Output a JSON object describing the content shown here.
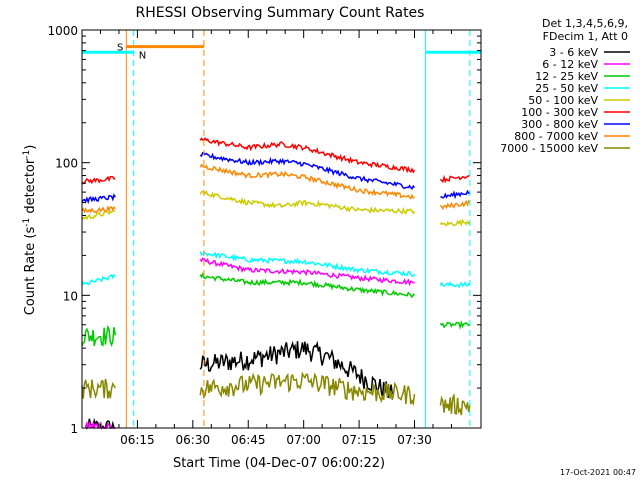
{
  "chart_data": {
    "type": "line",
    "title": "RHESSI Observing Summary Count Rates",
    "xlabel": "Start Time (04-Dec-07 06:00:22)",
    "ylabel_main": "Count Rate (s",
    "ylabel_sup1": "-1",
    "ylabel_mid": " detector",
    "ylabel_sup2": "-1",
    "ylabel_end": ")",
    "yscale": "log",
    "ylim": [
      1,
      1000
    ],
    "xlim_min": [
      0,
      108
    ],
    "x_ticks": [
      {
        "min": 15,
        "label": "06:15"
      },
      {
        "min": 30,
        "label": "06:30"
      },
      {
        "min": 45,
        "label": "06:45"
      },
      {
        "min": 60,
        "label": "07:00"
      },
      {
        "min": 75,
        "label": "07:15"
      },
      {
        "min": 90,
        "label": "07:30"
      }
    ],
    "y_ticks": [
      {
        "value": 1,
        "label": "1"
      },
      {
        "value": 10,
        "label": "10"
      },
      {
        "value": 100,
        "label": "100"
      },
      {
        "value": 1000,
        "label": "1000"
      }
    ],
    "legend": {
      "header1": "Det 1,3,4,5,6,9,",
      "header2": "FDecim 1, Att 0",
      "position": "right"
    },
    "series": [
      {
        "name": "3 - 6 keV",
        "color": "#000000",
        "segments": [
          [
            [
              1,
              1
            ],
            [
              9,
              1
            ]
          ],
          [
            [
              32,
              3
            ],
            [
              45,
              3.3
            ],
            [
              54,
              3.7
            ],
            [
              60,
              4
            ],
            [
              66,
              3.5
            ],
            [
              74,
              2.6
            ],
            [
              84,
              1.8
            ]
          ]
        ]
      },
      {
        "name": "6 - 12 keV",
        "color": "#ff00ff",
        "segments": [
          [
            [
              1,
              1
            ],
            [
              9,
              1
            ]
          ],
          [
            [
              32,
              18.5
            ],
            [
              45,
              15.5
            ],
            [
              60,
              15
            ],
            [
              75,
              13.5
            ],
            [
              90,
              12.5
            ]
          ]
        ]
      },
      {
        "name": "12 - 25 keV",
        "color": "#00cc00",
        "segments": [
          [
            [
              0,
              5
            ],
            [
              9,
              5
            ]
          ],
          [
            [
              32,
              14
            ],
            [
              45,
              12.5
            ],
            [
              60,
              12.5
            ],
            [
              75,
              11
            ],
            [
              90,
              10
            ]
          ],
          [
            [
              97,
              6
            ],
            [
              105,
              6
            ]
          ]
        ]
      },
      {
        "name": "25 - 50 keV",
        "color": "#00ffff",
        "segments": [
          [
            [
              0,
              12
            ],
            [
              9,
              14
            ]
          ],
          [
            [
              32,
              21
            ],
            [
              45,
              18.5
            ],
            [
              60,
              18
            ],
            [
              75,
              15.5
            ],
            [
              90,
              14.5
            ]
          ],
          [
            [
              97,
              12
            ],
            [
              105,
              12
            ]
          ]
        ]
      },
      {
        "name": "50 - 100 keV",
        "color": "#cccc00",
        "segments": [
          [
            [
              0,
              38
            ],
            [
              9,
              43
            ]
          ],
          [
            [
              32,
              60
            ],
            [
              45,
              50
            ],
            [
              54,
              47
            ],
            [
              60,
              50
            ],
            [
              66,
              48
            ],
            [
              75,
              44
            ],
            [
              90,
              43
            ]
          ],
          [
            [
              97,
              34
            ],
            [
              105,
              36
            ]
          ]
        ]
      },
      {
        "name": "100 - 300 keV",
        "color": "#ff0000",
        "segments": [
          [
            [
              0,
              72
            ],
            [
              9,
              76
            ]
          ],
          [
            [
              32,
              150
            ],
            [
              45,
              130
            ],
            [
              54,
              138
            ],
            [
              60,
              130
            ],
            [
              75,
              100
            ],
            [
              90,
              88
            ]
          ],
          [
            [
              97,
              74
            ],
            [
              105,
              80
            ]
          ]
        ]
      },
      {
        "name": "300 - 800 keV",
        "color": "#0000ff",
        "segments": [
          [
            [
              0,
              52
            ],
            [
              9,
              55
            ]
          ],
          [
            [
              32,
              115
            ],
            [
              45,
              100
            ],
            [
              54,
              103
            ],
            [
              60,
              98
            ],
            [
              75,
              76
            ],
            [
              90,
              65
            ]
          ],
          [
            [
              97,
              55
            ],
            [
              105,
              60
            ]
          ]
        ]
      },
      {
        "name": "800 - 7000 keV",
        "color": "#ff8800",
        "segments": [
          [
            [
              0,
              43
            ],
            [
              9,
              45
            ]
          ],
          [
            [
              32,
              95
            ],
            [
              45,
              80
            ],
            [
              54,
              82
            ],
            [
              60,
              78
            ],
            [
              75,
              62
            ],
            [
              90,
              55
            ]
          ],
          [
            [
              97,
              46
            ],
            [
              105,
              50
            ]
          ]
        ]
      },
      {
        "name": "7000 - 15000 keV",
        "color": "#888800",
        "segments": [
          [
            [
              0,
              2
            ],
            [
              9,
              2
            ]
          ],
          [
            [
              32,
              2
            ],
            [
              60,
              2.3
            ],
            [
              75,
              1.9
            ],
            [
              90,
              1.8
            ]
          ],
          [
            [
              97,
              1.5
            ],
            [
              105,
              1.5
            ]
          ]
        ]
      }
    ],
    "overlays": {
      "saa_label": "S",
      "night_label": "N",
      "saa_color": "#ff8800",
      "night_color": "#00ffff",
      "saa_bar": {
        "x": [
          12,
          33
        ],
        "y": 750
      },
      "night_bars": [
        {
          "x": [
            0,
            14
          ],
          "y": 680
        },
        {
          "x": [
            93,
            108
          ],
          "y": 680
        }
      ],
      "solid_lines": [
        {
          "x": 12,
          "color": "#ff8800"
        },
        {
          "x": 93,
          "color": "#00ffff"
        }
      ],
      "dashed_lines": [
        {
          "x": 14,
          "color": "#00ffff"
        },
        {
          "x": 33,
          "color": "#ff8800"
        },
        {
          "x": 105,
          "color": "#00ffff"
        }
      ]
    }
  },
  "footer_stamp": "17-Oct-2021 00:47"
}
